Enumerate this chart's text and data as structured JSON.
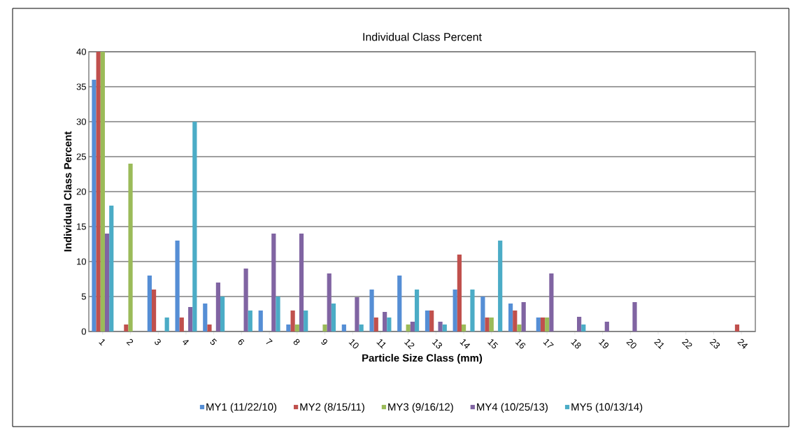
{
  "chart_data": {
    "type": "bar",
    "title": "Individual Class Percent",
    "xlabel": "Particle Size Class (mm)",
    "ylabel": "Individual Class Percent",
    "categories": [
      "1",
      "2",
      "3",
      "4",
      "5",
      "6",
      "7",
      "8",
      "9",
      "10",
      "11",
      "12",
      "13",
      "14",
      "15",
      "16",
      "17",
      "18",
      "19",
      "20",
      "21",
      "22",
      "23",
      "24"
    ],
    "series": [
      {
        "name": "MY1 (11/22/10)",
        "color": "#558ed5",
        "values": [
          36,
          0,
          8,
          13,
          4,
          0,
          3,
          1,
          0,
          1,
          6,
          8,
          3,
          6,
          5,
          4,
          2,
          0,
          0,
          0,
          0,
          0,
          0,
          0
        ]
      },
      {
        "name": "MY2 (8/15/11)",
        "color": "#c0504d",
        "values": [
          40,
          1,
          6,
          2,
          1,
          0,
          0,
          3,
          0,
          0,
          2,
          0,
          3,
          11,
          2,
          3,
          2,
          0,
          0,
          0,
          0,
          0,
          0,
          1
        ]
      },
      {
        "name": "MY3 (9/16/12)",
        "color": "#9bbb59",
        "values": [
          40,
          24,
          0,
          0,
          0,
          0,
          0,
          1,
          1,
          0,
          0,
          1,
          0,
          1,
          2,
          1,
          2,
          0,
          0,
          0,
          0,
          0,
          0,
          0
        ]
      },
      {
        "name": "MY4 (10/25/13)",
        "color": "#8064a2",
        "values": [
          14,
          0,
          0,
          3.5,
          7,
          9,
          14,
          14,
          8.3,
          4.9,
          2.8,
          1.4,
          1.4,
          0,
          0,
          4.2,
          8.3,
          2.1,
          1.4,
          4.2,
          0,
          0,
          0,
          0
        ]
      },
      {
        "name": "MY5 (10/13/14)",
        "color": "#4bacc6",
        "values": [
          18,
          0,
          2,
          30,
          5,
          3,
          5,
          3,
          4,
          1,
          2,
          6,
          1,
          6,
          13,
          0,
          0,
          1,
          0,
          0,
          0,
          0,
          0,
          0
        ]
      }
    ],
    "ylim": [
      0,
      40
    ],
    "yticks": [
      0,
      5,
      10,
      15,
      20,
      25,
      30,
      35,
      40
    ],
    "grid": "y",
    "legend": "bottom"
  }
}
